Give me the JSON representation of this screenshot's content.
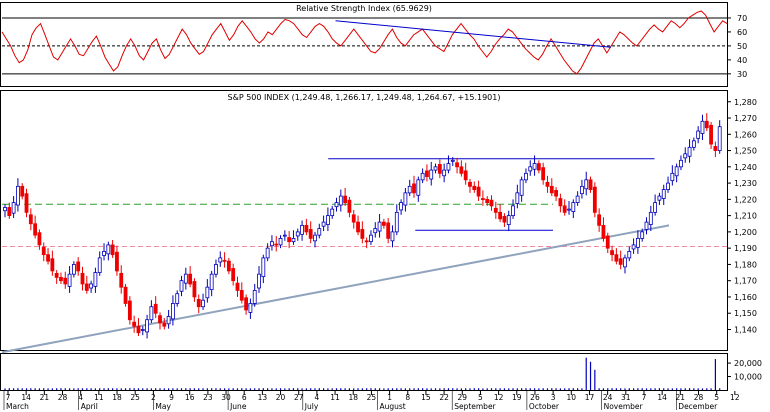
{
  "chart_data": [
    {
      "type": "line",
      "title": "Relative Strength Index (65.9629)",
      "ylim": [
        22,
        80
      ],
      "yticks": [
        30,
        40,
        50,
        60,
        70
      ],
      "reference_lines": [
        30,
        50,
        70
      ],
      "series": [
        {
          "values": [
            60,
            55,
            50,
            43,
            38,
            40,
            47,
            58,
            63,
            66,
            58,
            50,
            42,
            40,
            45,
            50,
            55,
            50,
            44,
            43,
            48,
            53,
            57,
            50,
            42,
            37,
            32,
            35,
            43,
            50,
            55,
            50,
            43,
            40,
            46,
            52,
            55,
            47,
            41,
            44,
            50,
            56,
            62,
            58,
            52,
            48,
            44,
            46,
            52,
            58,
            62,
            66,
            60,
            54,
            58,
            64,
            68,
            64,
            60,
            55,
            52,
            55,
            60,
            58,
            62,
            66,
            69,
            68,
            66,
            62,
            58,
            56,
            60,
            64,
            66,
            64,
            60,
            55,
            52,
            50,
            54,
            58,
            62,
            58,
            54,
            50,
            46,
            45,
            48,
            53,
            58,
            62,
            56,
            52,
            50,
            54,
            58,
            60,
            62,
            58,
            54,
            50,
            48,
            46,
            52,
            58,
            62,
            66,
            62,
            58,
            55,
            50,
            46,
            42,
            46,
            51,
            55,
            58,
            62,
            60,
            56,
            52,
            48,
            45,
            42,
            40,
            44,
            50,
            55,
            50,
            45,
            40,
            36,
            32,
            30,
            34,
            40,
            46,
            52,
            55,
            50,
            45,
            50,
            55,
            60,
            58,
            55,
            52,
            50,
            54,
            58,
            62,
            65,
            62,
            60,
            64,
            68,
            66,
            63,
            66,
            70,
            72,
            74,
            75,
            72,
            66,
            60,
            64,
            68,
            66
          ]
        }
      ],
      "trendlines": [
        {
          "x": [
            0.46,
            0.84
          ],
          "y": [
            68,
            49
          ]
        }
      ]
    },
    {
      "type": "candlestick",
      "title": "S&P 500 INDEX (1,249.48, 1,266.17, 1,249.48, 1,264.67, +15.1901)",
      "ylim": [
        1128,
        1286
      ],
      "yticks": [
        1140,
        1150,
        1160,
        1170,
        1180,
        1190,
        1200,
        1210,
        1220,
        1230,
        1240,
        1250,
        1260,
        1270,
        1280
      ],
      "close": [
        1215,
        1210,
        1218,
        1228,
        1222,
        1212,
        1205,
        1198,
        1192,
        1186,
        1182,
        1176,
        1172,
        1170,
        1168,
        1174,
        1180,
        1176,
        1168,
        1164,
        1168,
        1175,
        1184,
        1188,
        1192,
        1186,
        1176,
        1166,
        1156,
        1146,
        1142,
        1138,
        1140,
        1146,
        1154,
        1150,
        1144,
        1142,
        1148,
        1156,
        1162,
        1170,
        1174,
        1168,
        1160,
        1154,
        1158,
        1166,
        1174,
        1180,
        1184,
        1182,
        1176,
        1170,
        1164,
        1158,
        1152,
        1156,
        1164,
        1174,
        1184,
        1190,
        1194,
        1192,
        1196,
        1198,
        1194,
        1196,
        1200,
        1204,
        1200,
        1196,
        1198,
        1202,
        1206,
        1210,
        1214,
        1218,
        1222,
        1218,
        1212,
        1206,
        1200,
        1196,
        1194,
        1198,
        1202,
        1206,
        1204,
        1196,
        1200,
        1212,
        1218,
        1224,
        1228,
        1224,
        1232,
        1236,
        1234,
        1238,
        1240,
        1236,
        1238,
        1242,
        1244,
        1240,
        1236,
        1232,
        1228,
        1226,
        1222,
        1220,
        1218,
        1216,
        1212,
        1208,
        1206,
        1210,
        1216,
        1224,
        1232,
        1236,
        1240,
        1242,
        1238,
        1232,
        1228,
        1224,
        1222,
        1216,
        1212,
        1214,
        1218,
        1222,
        1228,
        1232,
        1226,
        1212,
        1204,
        1196,
        1190,
        1186,
        1182,
        1180,
        1184,
        1188,
        1192,
        1196,
        1200,
        1206,
        1212,
        1218,
        1222,
        1226,
        1230,
        1236,
        1240,
        1244,
        1248,
        1252,
        1256,
        1262,
        1268,
        1264,
        1254,
        1250,
        1264.67
      ],
      "annotations": [
        {
          "type": "hline",
          "y": 1245,
          "x": [
            0.45,
            0.9
          ]
        },
        {
          "type": "hline",
          "y": 1217,
          "x": [
            0.0,
            0.76
          ],
          "style": "dashed-green"
        },
        {
          "type": "hline",
          "y": 1201,
          "x": [
            0.57,
            0.76
          ]
        },
        {
          "type": "hline",
          "y": 1191,
          "x": [
            0.0,
            1.0
          ],
          "style": "dashed-pink"
        },
        {
          "type": "trendline",
          "x": [
            0.0,
            0.92
          ],
          "y": [
            1126,
            1204
          ]
        }
      ],
      "y_format": "comma"
    },
    {
      "type": "bar",
      "ylim": [
        0,
        26000
      ],
      "yticks": [
        10000,
        20000
      ],
      "y_format": "comma",
      "values": [
        1200,
        1300,
        1250,
        1400,
        1300,
        1250,
        1350,
        1300,
        1200,
        1300,
        1250,
        1200,
        1300,
        1350,
        1300,
        1250,
        1200,
        1300,
        1250,
        1350,
        1300,
        1200,
        1250,
        1300,
        1350,
        1300,
        1250,
        1200,
        1300,
        1400,
        1350,
        1300,
        1250,
        1300,
        1200,
        1350,
        1300,
        1250,
        1200,
        1300,
        1250,
        1300,
        1350,
        1300,
        1250,
        1200,
        1300,
        1250,
        1300,
        1350,
        1300,
        1250,
        1200,
        1300,
        1250,
        1350,
        1300,
        1200,
        1250,
        1300,
        1350,
        1300,
        1250,
        1200,
        1300,
        1250,
        1300,
        1350,
        1300,
        1250,
        1200,
        1300,
        1250,
        1350,
        1300,
        1200,
        1250,
        1300,
        1350,
        1300,
        1250,
        1200,
        1300,
        1250,
        1300,
        1350,
        1300,
        1250,
        1200,
        1300,
        1250,
        1350,
        1300,
        1200,
        1250,
        1300,
        1350,
        1300,
        1250,
        1200,
        1300,
        1250,
        1300,
        1350,
        1300,
        1250,
        1200,
        1300,
        1250,
        1350,
        1300,
        1200,
        1250,
        1300,
        1350,
        1300,
        1250,
        1200,
        1300,
        1250,
        1300,
        1350,
        1300,
        1250,
        1200,
        1300,
        1250,
        1350,
        1300,
        1200,
        1250,
        1300,
        1350,
        1300,
        1250,
        24000,
        21000,
        15000,
        1300,
        1250,
        1300,
        1350,
        1300,
        1250,
        1200,
        1300,
        1250,
        1350,
        1300,
        1200,
        1250,
        1300,
        1350,
        1300,
        1250,
        1200,
        1300,
        1250,
        1300,
        1350,
        1300,
        1250,
        1200,
        1300,
        1250,
        23000,
        1300
      ]
    }
  ],
  "x_axis": {
    "day_ticks": [
      "7",
      "14",
      "21",
      "28",
      "4",
      "11",
      "18",
      "25",
      "2",
      "9",
      "16",
      "23",
      "30",
      "6",
      "13",
      "20",
      "27",
      "4",
      "11",
      "18",
      "25",
      "1",
      "8",
      "15",
      "22",
      "29",
      "5",
      "12",
      "19",
      "26",
      "3",
      "10",
      "17",
      "24",
      "31",
      "7",
      "14",
      "21",
      "28",
      "5",
      "12"
    ],
    "months": [
      "March",
      "April",
      "May",
      "June",
      "July",
      "August",
      "September",
      "October",
      "November",
      "December"
    ]
  }
}
